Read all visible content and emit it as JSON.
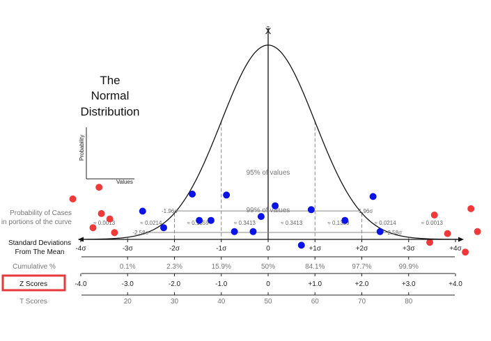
{
  "title": {
    "line1": "The",
    "line2": "Normal",
    "line3": "Distribution"
  },
  "mean_symbol": "X̄",
  "axes_inset": {
    "ylabel": "Probability",
    "xlabel": "Values"
  },
  "bands": {
    "ci95": {
      "label": "95% of values",
      "left": "-1.96σ",
      "right": "1.96σ"
    },
    "ci99": {
      "label": "99% of values",
      "left": "-2.58σ",
      "right": "2.58σ"
    }
  },
  "probability_label": {
    "line1": "Probability of Cases",
    "line2": "in portions of the curve"
  },
  "probabilities": [
    "≈ 0.0013",
    "≈ 0.0214",
    "≈ 0.1359",
    "≈ 0.3413",
    "≈ 0.3413",
    "≈ 0.1359",
    "≈ 0.0214",
    "≈ 0.0013"
  ],
  "std_label": {
    "line1": "Standard Deviations",
    "line2": "From The Mean"
  },
  "std_ticks": [
    "-4σ",
    "-3σ",
    "-2σ",
    "-1σ",
    "0",
    "+1σ",
    "+2σ",
    "+3σ",
    "+4σ"
  ],
  "cumulative_label": "Cumulative %",
  "cumulative": [
    "0.1%",
    "2.3%",
    "15.9%",
    "50%",
    "84.1%",
    "97.7%",
    "99.9%"
  ],
  "z_label": "Z Scores",
  "z_scores": [
    "-4.0",
    "-3.0",
    "-2.0",
    "-1.0",
    "0",
    "+1.0",
    "+2.0",
    "+3.0",
    "+4.0"
  ],
  "t_label": "T Scores",
  "t_scores": [
    "20",
    "30",
    "40",
    "50",
    "60",
    "70",
    "80"
  ],
  "colors": {
    "highlight_box": "#e8393a",
    "blue_point": "#0a14e6",
    "red_point": "#f03a3a",
    "guide": "#888888"
  },
  "points": {
    "blue": [
      [
        -2.68,
        0.058
      ],
      [
        -2.23,
        0.024
      ],
      [
        -1.62,
        0.093
      ],
      [
        -1.47,
        0.039
      ],
      [
        -1.22,
        0.039
      ],
      [
        -0.89,
        0.091
      ],
      [
        -0.72,
        0.016
      ],
      [
        -0.32,
        0.016
      ],
      [
        -0.15,
        0.047
      ],
      [
        0.15,
        0.069
      ],
      [
        0.71,
        -0.012
      ],
      [
        0.92,
        0.061
      ],
      [
        1.64,
        0.039
      ],
      [
        2.24,
        0.088
      ],
      [
        2.39,
        0.016
      ]
    ],
    "red": [
      [
        -4.17,
        0.083
      ],
      [
        -3.61,
        0.107
      ],
      [
        -3.56,
        0.053
      ],
      [
        -3.74,
        0.024
      ],
      [
        -3.38,
        0.042
      ],
      [
        -3.28,
        0.014
      ],
      [
        3.55,
        0.05
      ],
      [
        3.83,
        0.012
      ],
      [
        3.45,
        -0.006
      ],
      [
        4.33,
        0.063
      ],
      [
        4.47,
        0.016
      ],
      [
        4.21,
        -0.026
      ]
    ]
  }
}
